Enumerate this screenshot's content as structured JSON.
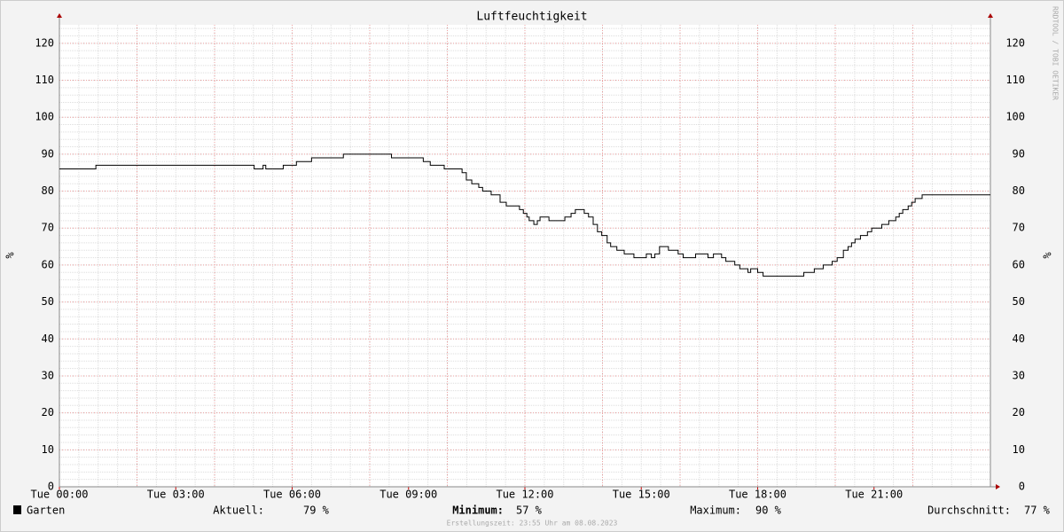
{
  "chart_data": {
    "type": "step",
    "title": "Luftfeuchtigkeit",
    "y_label": "%",
    "side_note": "RRDTOOL / TOBI OETIKER",
    "x": [
      0,
      0.94,
      5.02,
      5.25,
      5.32,
      5.77,
      6.11,
      6.5,
      7.32,
      8.56,
      9.38,
      9.56,
      9.92,
      10.38,
      10.49,
      10.63,
      10.81,
      10.91,
      11.13,
      11.36,
      11.52,
      11.86,
      11.96,
      12.05,
      12.11,
      12.23,
      12.32,
      12.39,
      12.62,
      13.03,
      13.19,
      13.3,
      13.53,
      13.64,
      13.76,
      13.87,
      13.98,
      14.12,
      14.21,
      14.37,
      14.56,
      14.81,
      15.13,
      15.26,
      15.35,
      15.47,
      15.7,
      15.95,
      16.08,
      16.4,
      16.72,
      16.86,
      17.07,
      17.18,
      17.41,
      17.54,
      17.75,
      17.82,
      18.0,
      18.14,
      19.19,
      19.46,
      19.69,
      19.92,
      20.05,
      20.21,
      20.33,
      20.42,
      20.51,
      20.65,
      20.83,
      20.94,
      21.2,
      21.38,
      21.56,
      21.65,
      21.74,
      21.88,
      21.97,
      22.06,
      22.24
    ],
    "series": [
      {
        "name": "Garten",
        "color": "#000000",
        "values": [
          86,
          87,
          86,
          87,
          86,
          87,
          88,
          89,
          90,
          89,
          88,
          87,
          86,
          85,
          83,
          82,
          81,
          80,
          79,
          77,
          76,
          75,
          74,
          73,
          72,
          71,
          72,
          73,
          72,
          73,
          74,
          75,
          74,
          73,
          71,
          69,
          68,
          66,
          65,
          64,
          63,
          62,
          63,
          62,
          63,
          65,
          64,
          63,
          62,
          63,
          62,
          63,
          62,
          61,
          60,
          59,
          58,
          59,
          58,
          57,
          58,
          59,
          60,
          61,
          62,
          64,
          65,
          66,
          67,
          68,
          69,
          70,
          71,
          72,
          73,
          74,
          75,
          76,
          77,
          78,
          79
        ]
      }
    ],
    "xlim": [
      0,
      24
    ],
    "xticks": [
      {
        "value": 0,
        "label": "Tue 00:00"
      },
      {
        "value": 3,
        "label": "Tue 03:00"
      },
      {
        "value": 6,
        "label": "Tue 06:00"
      },
      {
        "value": 9,
        "label": "Tue 09:00"
      },
      {
        "value": 12,
        "label": "Tue 12:00"
      },
      {
        "value": 15,
        "label": "Tue 15:00"
      },
      {
        "value": 18,
        "label": "Tue 18:00"
      },
      {
        "value": 21,
        "label": "Tue 21:00"
      }
    ],
    "ylim": [
      0,
      125
    ],
    "yticks": [
      0,
      10,
      20,
      30,
      40,
      50,
      60,
      70,
      80,
      90,
      100,
      110,
      120
    ],
    "grid": true,
    "stats": [
      {
        "label": "Aktuell:",
        "value": "79 %"
      },
      {
        "label": "Minimum:",
        "value": "57 %"
      },
      {
        "label": "Maximum:",
        "value": "90 %"
      },
      {
        "label": "Durchschnitt:",
        "value": "77 %"
      }
    ],
    "footer": "Erstellungszeit: 23:55 Uhr am 08.08.2023"
  }
}
